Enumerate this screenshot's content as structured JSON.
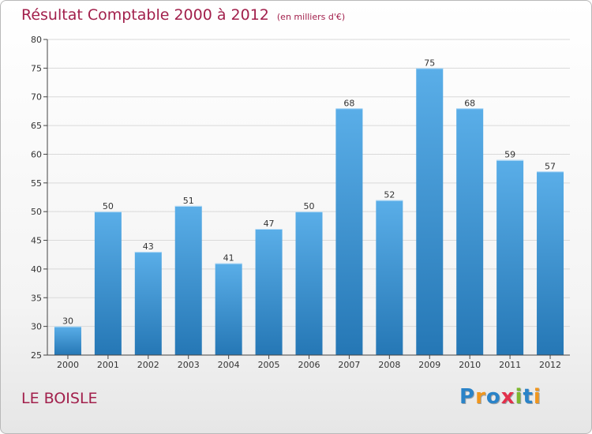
{
  "chart_data": {
    "type": "bar",
    "title": "Résultat Comptable 2000 à 2012",
    "subtitle": "(en milliers d'€)",
    "categories": [
      "2000",
      "2001",
      "2002",
      "2003",
      "2004",
      "2005",
      "2006",
      "2007",
      "2008",
      "2009",
      "2010",
      "2011",
      "2012"
    ],
    "values": [
      30,
      50,
      43,
      51,
      41,
      47,
      50,
      68,
      52,
      75,
      68,
      59,
      57
    ],
    "ylim": [
      25,
      80
    ],
    "yticks": [
      25,
      30,
      35,
      40,
      45,
      50,
      55,
      60,
      65,
      70,
      75,
      80
    ],
    "xlabel": "",
    "ylabel": "",
    "grid": true
  },
  "footer": {
    "place_name": "LE BOISLE",
    "brand_letters": [
      "P",
      "r",
      "o",
      "x",
      "i",
      "t",
      "i"
    ]
  },
  "colors": {
    "title": "#a2204c",
    "bar_top": "#5aaee8",
    "bar_bottom": "#2577b5",
    "grid": "#d9d9d9"
  }
}
